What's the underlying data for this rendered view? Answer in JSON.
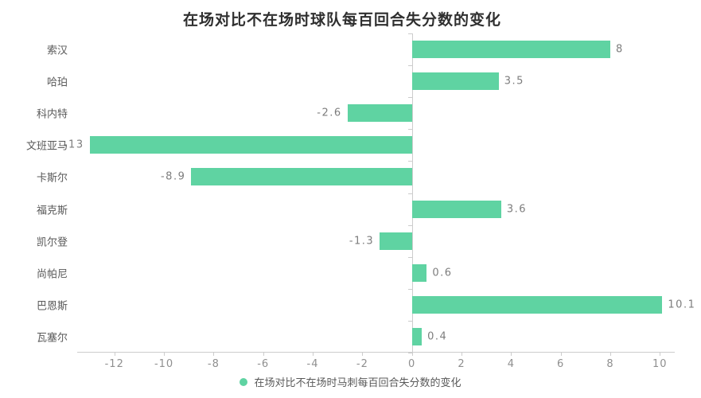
{
  "title": "在场对比不在场时球队每百回合失分数的变化",
  "legend": {
    "label": "在场对比不在场时马刺每百回合失分数的变化",
    "dot_color": "#5fd3a2"
  },
  "colors": {
    "bar": "#5fd3a2",
    "axis_line": "#cccccc",
    "title_text": "#2f2f2f",
    "category_text": "#595959",
    "value_text": "#7d7d7d",
    "tick_text": "#8f8f8f"
  },
  "chart_data": {
    "type": "bar",
    "orientation": "horizontal",
    "title": "在场对比不在场时球队每百回合失分数的变化",
    "categories": [
      "索汉",
      "哈珀",
      "科内特",
      "文班亚马",
      "卡斯尔",
      "福克斯",
      "凯尔登",
      "尚帕尼",
      "巴恩斯",
      "瓦塞尔"
    ],
    "values": [
      8,
      3.5,
      -2.6,
      -13,
      -8.9,
      3.6,
      -1.3,
      0.6,
      10.1,
      0.4
    ],
    "value_labels": [
      "8",
      "3.5",
      "-2.6",
      "-13",
      "-8.9",
      "3.6",
      "-1.3",
      "0.6",
      "10.1",
      "0.4"
    ],
    "series": [
      {
        "name": "在场对比不在场时马刺每百回合失分数的变化",
        "values": [
          8,
          3.5,
          -2.6,
          -13,
          -8.9,
          3.6,
          -1.3,
          0.6,
          10.1,
          0.4
        ]
      }
    ],
    "xlabel": "",
    "ylabel": "",
    "xlim": [
      -13.5,
      10.6
    ],
    "x_ticks": [
      -12,
      -10,
      -8,
      -6,
      -4,
      -2,
      0,
      2,
      4,
      6,
      8,
      10
    ],
    "grid": false,
    "legend_position": "bottom",
    "bar_color": "#5fd3a2"
  }
}
